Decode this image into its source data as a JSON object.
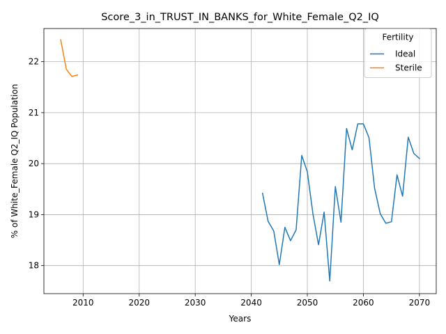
{
  "chart_data": {
    "type": "line",
    "title": "Score_3_in_TRUST_IN_BANKS_for_White_Female_Q2_IQ",
    "xlabel": "Years",
    "ylabel": "% of White_Female Q2_IQ Population",
    "xlim": [
      2003,
      2073
    ],
    "ylim": [
      17.45,
      22.65
    ],
    "xticks": [
      2010,
      2020,
      2030,
      2040,
      2050,
      2060,
      2070
    ],
    "yticks": [
      18,
      19,
      20,
      21,
      22
    ],
    "grid": true,
    "legend": {
      "title": "Fertility",
      "placement": "top-right"
    },
    "series": [
      {
        "name": "Ideal",
        "color": "#1f77b4",
        "x": [
          2042,
          2043,
          2044,
          2045,
          2046,
          2047,
          2048,
          2049,
          2050,
          2051,
          2052,
          2053,
          2054,
          2055,
          2056,
          2057,
          2058,
          2059,
          2060,
          2061,
          2062,
          2063,
          2064,
          2065,
          2066,
          2067,
          2068,
          2069,
          2070
        ],
        "y": [
          19.42,
          18.87,
          18.68,
          18.02,
          18.75,
          18.49,
          18.7,
          20.16,
          19.84,
          19.01,
          18.41,
          19.05,
          17.7,
          19.55,
          18.85,
          20.69,
          20.27,
          20.78,
          20.78,
          20.51,
          19.52,
          19.02,
          18.83,
          18.86,
          19.78,
          19.36,
          20.52,
          20.2,
          20.1
        ]
      },
      {
        "name": "Sterile",
        "color": "#ff7f0e",
        "x": [
          2006,
          2007,
          2008,
          2009
        ],
        "y": [
          22.43,
          21.85,
          21.71,
          21.74
        ]
      }
    ]
  }
}
